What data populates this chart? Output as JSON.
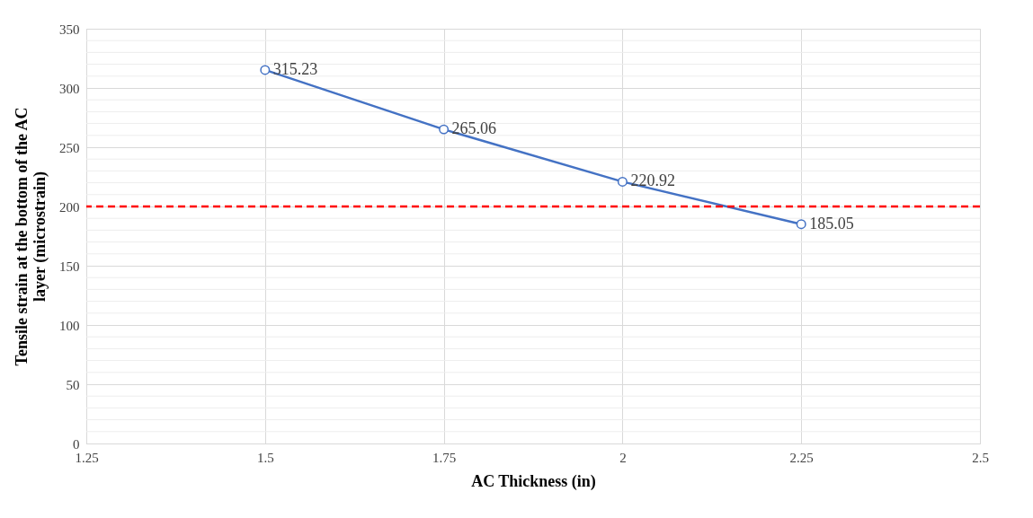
{
  "chart_data": {
    "type": "line",
    "xlabel": "AC Thickness (in)",
    "ylabel": "Tensile strain at the bottom of the AC layer (microstrain)",
    "x": [
      1.5,
      1.75,
      2,
      2.25
    ],
    "series": [
      {
        "color": "#4472c4",
        "values": [
          315.23,
          265.06,
          220.92,
          185.05
        ]
      }
    ],
    "xlim": [
      1.25,
      2.5
    ],
    "xticks": [
      1.25,
      1.5,
      1.75,
      2,
      2.25,
      2.5
    ],
    "ylim": [
      0,
      350
    ],
    "yticks": [
      0,
      {
        "value": 10,
        "label": null
      },
      {
        "value": 20,
        "label": null
      },
      {
        "value": 30,
        "label": null
      },
      {
        "value": 40,
        "label": null
      },
      50,
      {
        "value": 60,
        "label": null
      },
      {
        "value": 70,
        "label": null
      },
      {
        "value": 80,
        "label": null
      },
      {
        "value": 90,
        "label": null
      },
      100,
      {
        "value": 110,
        "label": null
      },
      {
        "value": 120,
        "label": null
      },
      {
        "value": 130,
        "label": null
      },
      {
        "value": 140,
        "label": null
      },
      150,
      {
        "value": 160,
        "label": null
      },
      {
        "value": 170,
        "label": null
      },
      {
        "value": 180,
        "label": null
      },
      {
        "value": 190,
        "label": null
      },
      200,
      {
        "value": 210,
        "label": null
      },
      {
        "value": 220,
        "label": null
      },
      {
        "value": 230,
        "label": null
      },
      {
        "value": 240,
        "label": null
      },
      250,
      {
        "value": 260,
        "label": null
      },
      {
        "value": 270,
        "label": null
      },
      {
        "value": 280,
        "label": null
      },
      {
        "value": 290,
        "label": null
      },
      300,
      {
        "value": 310,
        "label": null
      },
      {
        "value": 320,
        "label": null
      },
      {
        "value": 330,
        "label": null
      },
      {
        "value": 340,
        "label": null
      },
      350
    ],
    "ref_lines": [
      {
        "axis": "y",
        "value": 200,
        "color": "#ff0000",
        "line_style": "dashed"
      }
    ],
    "grid": true,
    "marker": "circle",
    "line_style": "solid",
    "data_labels": true
  }
}
